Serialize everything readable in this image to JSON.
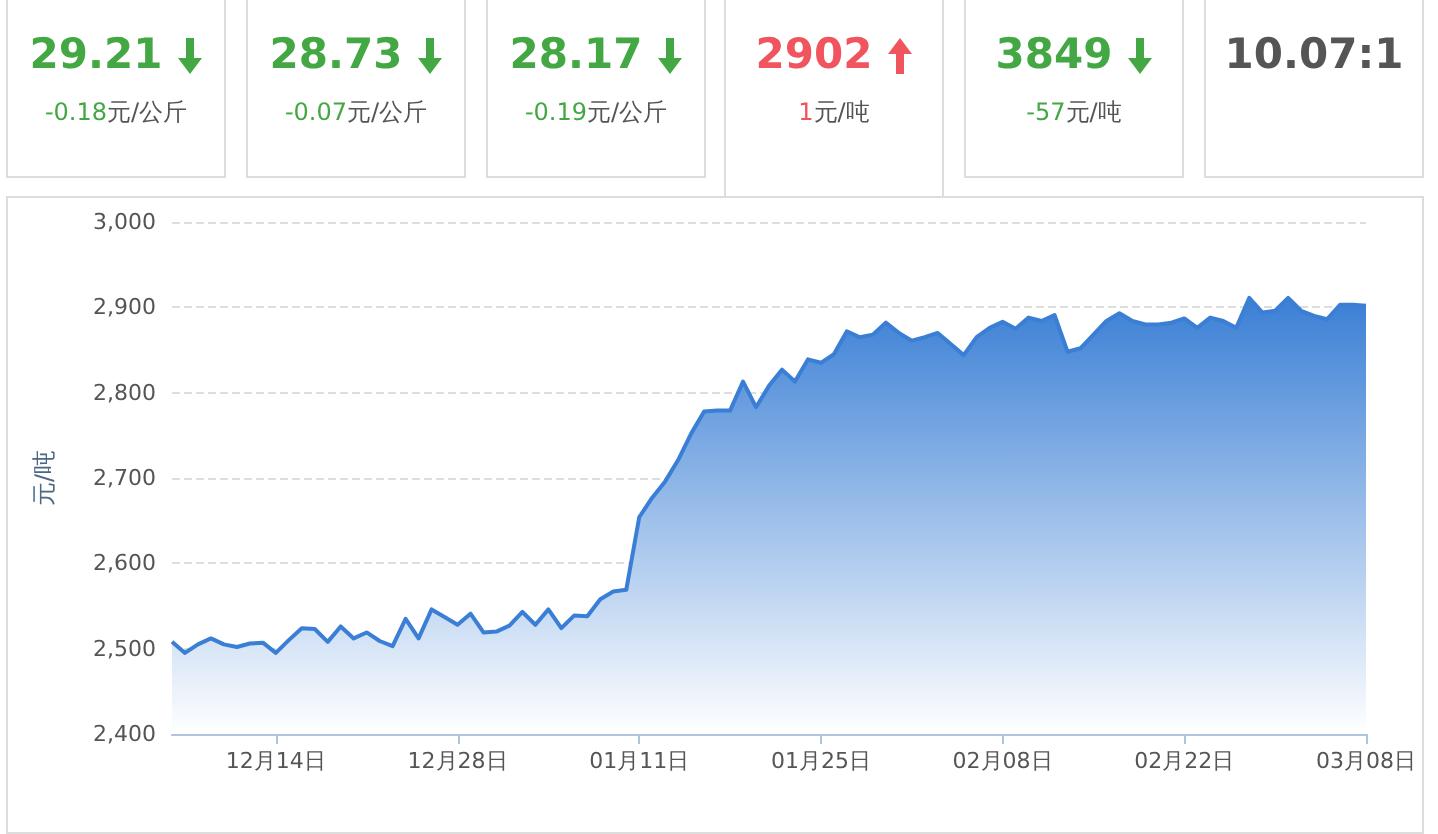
{
  "chart_data": [
    {
      "type": "other",
      "categories": [
        "29.21",
        "28.73",
        "28.17",
        "2902",
        "3849",
        "10.07:1"
      ],
      "value_labels": [
        "-0.18",
        "-0.07",
        "-0.19",
        "1",
        "-57",
        null
      ],
      "annotations": [
        "元/公斤",
        "元/公斤",
        "元/公斤",
        "元/吨",
        "元/吨",
        null
      ]
    },
    {
      "type": "area",
      "ylabel": "元/吨",
      "grid": "y",
      "marker": "none",
      "categories": [
        null,
        null,
        null,
        null,
        null,
        null,
        null,
        null,
        "12月14日",
        null,
        null,
        null,
        null,
        null,
        null,
        null,
        null,
        null,
        null,
        null,
        null,
        null,
        "12月28日",
        null,
        null,
        null,
        null,
        null,
        null,
        null,
        null,
        null,
        null,
        null,
        null,
        null,
        "01月11日",
        null,
        null,
        null,
        null,
        null,
        null,
        null,
        null,
        null,
        null,
        null,
        null,
        null,
        "01月25日",
        null,
        null,
        null,
        null,
        null,
        null,
        null,
        null,
        null,
        null,
        null,
        null,
        null,
        "02月08日",
        null,
        null,
        null,
        null,
        null,
        null,
        null,
        null,
        null,
        null,
        null,
        null,
        null,
        "02月22日",
        null,
        null,
        null,
        null,
        null,
        null,
        null,
        null,
        null,
        null,
        null,
        null,
        null,
        "03月08日"
      ],
      "ylim": [
        2400,
        3000
      ],
      "yticks": [
        {
          "value": 2400,
          "label": "2,400"
        },
        {
          "value": 2500,
          "label": "2,500"
        },
        {
          "value": 2600,
          "label": "2,600"
        },
        {
          "value": 2700,
          "label": "2,700"
        },
        {
          "value": 2800,
          "label": "2,800"
        },
        {
          "value": 2900,
          "label": "2,900"
        },
        {
          "value": 3000,
          "label": "3,000"
        }
      ],
      "series": [
        {
          "color": "#3a7fd5",
          "values": [
            2508,
            2495,
            2505,
            2512,
            2505,
            2502,
            2506,
            2507,
            2495,
            2510,
            2524,
            2523,
            2508,
            2526,
            2512,
            2519,
            2509,
            2503,
            2535,
            2512,
            2546,
            2537,
            2528,
            2541,
            2519,
            2520,
            2527,
            2543,
            2528,
            2546,
            2524,
            2539,
            2538,
            2558,
            2567,
            2569,
            2654,
            2677,
            2696,
            2721,
            2752,
            2778,
            2779,
            2779,
            2813,
            2783,
            2808,
            2827,
            2813,
            2839,
            2835,
            2845,
            2872,
            2865,
            2868,
            2882,
            2870,
            2861,
            2865,
            2870,
            2857,
            2844,
            2865,
            2876,
            2883,
            2875,
            2888,
            2884,
            2891,
            2848,
            2852,
            2868,
            2884,
            2893,
            2884,
            2880,
            2880,
            2882,
            2887,
            2876,
            2888,
            2884,
            2876,
            2911,
            2894,
            2896,
            2911,
            2896,
            2890,
            2886,
            2903,
            2903,
            2902
          ]
        }
      ]
    }
  ]
}
